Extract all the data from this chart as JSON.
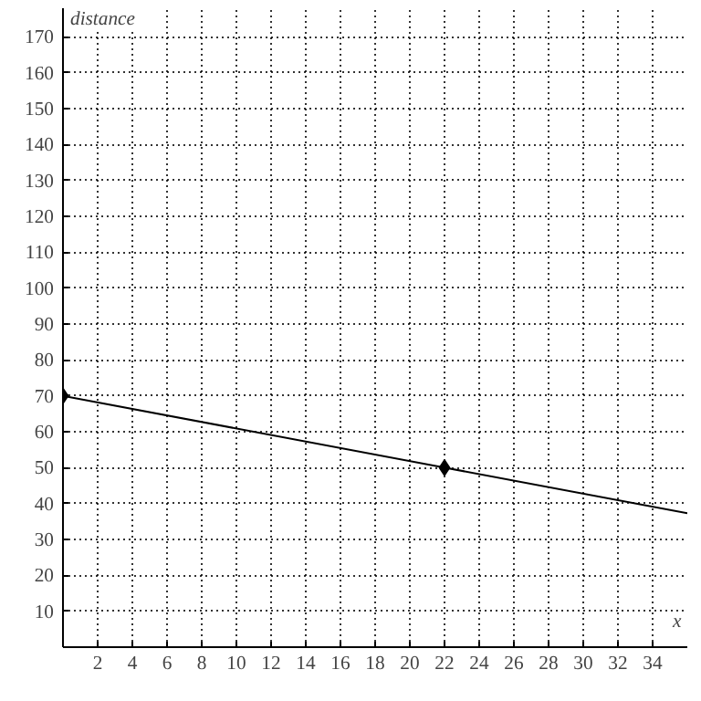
{
  "chart_data": {
    "type": "line",
    "xlabel": "x",
    "ylabel": "distance",
    "xlim": [
      0,
      36
    ],
    "ylim": [
      0,
      178
    ],
    "xticks": [
      2,
      4,
      6,
      8,
      10,
      12,
      14,
      16,
      18,
      20,
      22,
      24,
      26,
      28,
      30,
      32,
      34
    ],
    "yticks": [
      10,
      20,
      30,
      40,
      50,
      60,
      70,
      80,
      90,
      100,
      110,
      120,
      130,
      140,
      150,
      160,
      170
    ],
    "grid": true,
    "series": [
      {
        "color": "#000000",
        "x": [
          0,
          36
        ],
        "values": [
          70,
          37.3
        ],
        "marker": "none",
        "line_style": "solid"
      },
      {
        "type": "scatter",
        "color": "#000000",
        "x": [
          0,
          22
        ],
        "values": [
          70,
          50
        ],
        "marker": "diamond"
      }
    ]
  }
}
